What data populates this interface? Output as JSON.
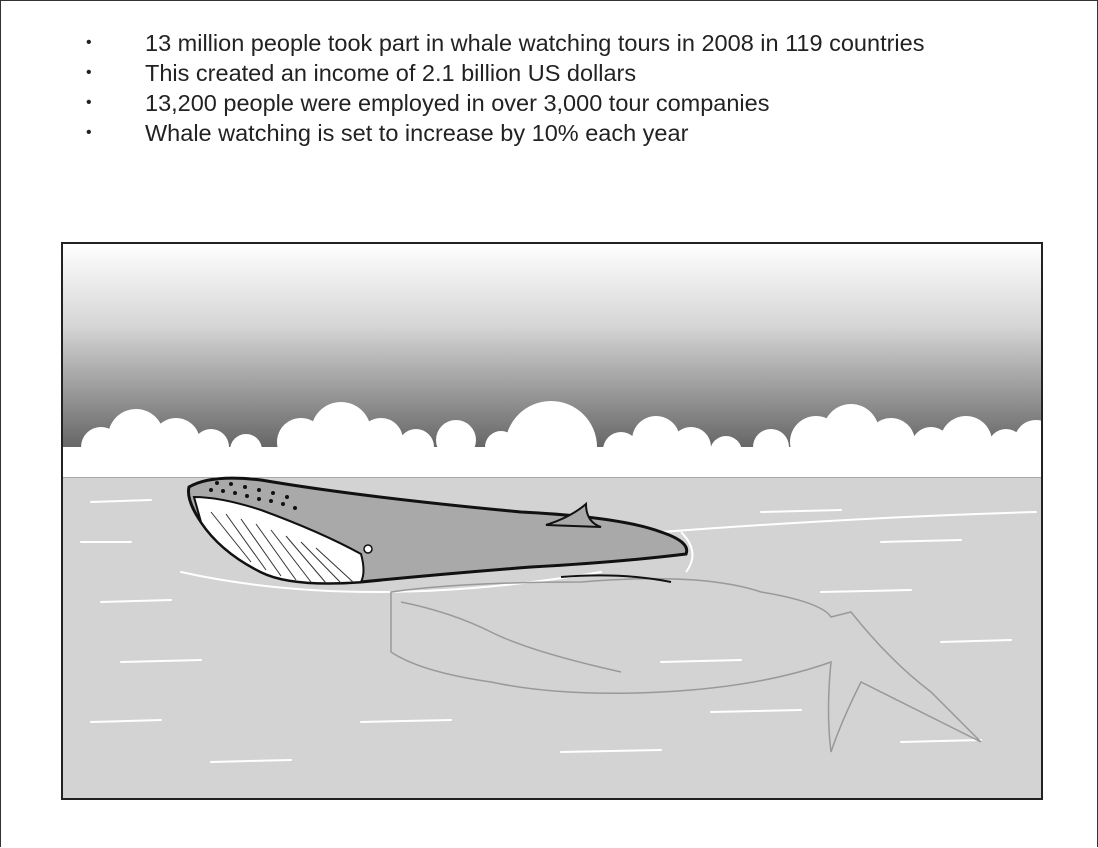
{
  "bullets": [
    "13 million people took part in whale watching tours in 2008 in 119 countries",
    "This created an income of 2.1 billion US dollars",
    "13,200 people were employed in over 3,000 tour companies",
    "Whale watching is set to increase by 10% each year"
  ]
}
